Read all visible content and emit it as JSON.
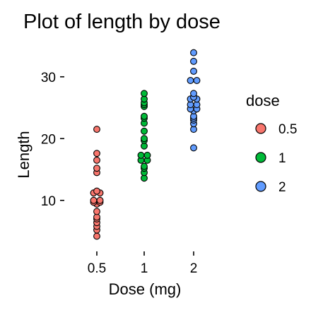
{
  "chart_data": {
    "type": "scatter",
    "subtype": "dotplot",
    "title": "Plot of length  by dose",
    "xlabel": "Dose (mg)",
    "ylabel": "Length",
    "categories": [
      "0.5",
      "1",
      "2"
    ],
    "yticks": [
      10,
      20,
      30
    ],
    "ylim": [
      3,
      35
    ],
    "legend": {
      "title": "dose",
      "position": "right",
      "entries": [
        {
          "label": "0.5",
          "color": "#f8766d"
        },
        {
          "label": "1",
          "color": "#00ba38"
        },
        {
          "label": "2",
          "color": "#619cff"
        }
      ]
    },
    "series": [
      {
        "category": "0.5",
        "color": "#f8766d",
        "values": [
          4.2,
          5.2,
          5.8,
          6.4,
          7.0,
          7.3,
          8.2,
          9.4,
          9.7,
          9.7,
          10.0,
          10.0,
          11.2,
          11.2,
          11.5,
          14.5,
          15.2,
          16.5,
          17.6,
          21.5
        ]
      },
      {
        "category": "1",
        "color": "#00ba38",
        "values": [
          13.6,
          14.5,
          15.2,
          15.5,
          16.5,
          16.5,
          17.3,
          17.3,
          18.8,
          19.7,
          20.0,
          21.2,
          22.5,
          23.3,
          23.6,
          25.2,
          25.5,
          25.8,
          26.4,
          27.3
        ]
      },
      {
        "category": "2",
        "color": "#619cff",
        "values": [
          18.5,
          21.5,
          22.4,
          23.0,
          23.3,
          23.6,
          24.5,
          24.8,
          25.5,
          25.5,
          26.4,
          26.4,
          26.7,
          27.3,
          29.4,
          29.5,
          30.9,
          32.5,
          33.9,
          24.8
        ]
      }
    ]
  }
}
